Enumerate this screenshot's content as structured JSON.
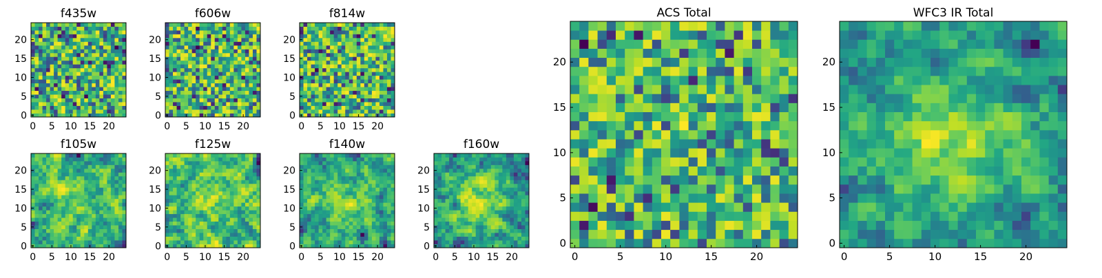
{
  "figure": {
    "colormap": "viridis",
    "colors": {
      "background": "#ffffff",
      "axis": "#000000"
    }
  },
  "chart_data": [
    {
      "type": "heatmap",
      "title": "f435w",
      "grid_size": 25,
      "seed": 11,
      "smoothness": 0,
      "center_boost": 0.0,
      "xticks": [
        0,
        5,
        10,
        15,
        20
      ],
      "yticks": [
        0,
        5,
        10,
        15,
        20
      ],
      "xlim": [
        0,
        24
      ],
      "ylim": [
        0,
        24
      ]
    },
    {
      "type": "heatmap",
      "title": "f606w",
      "grid_size": 25,
      "seed": 23,
      "smoothness": 0,
      "center_boost": 0.0,
      "xticks": [
        0,
        5,
        10,
        15,
        20
      ],
      "yticks": [
        0,
        5,
        10,
        15,
        20
      ],
      "xlim": [
        0,
        24
      ],
      "ylim": [
        0,
        24
      ]
    },
    {
      "type": "heatmap",
      "title": "f814w",
      "grid_size": 25,
      "seed": 37,
      "smoothness": 0,
      "center_boost": 0.0,
      "xticks": [
        0,
        5,
        10,
        15,
        20
      ],
      "yticks": [
        0,
        5,
        10,
        15,
        20
      ],
      "xlim": [
        0,
        24
      ],
      "ylim": [
        0,
        24
      ]
    },
    {
      "type": "heatmap",
      "title": "f105w",
      "grid_size": 25,
      "seed": 41,
      "smoothness": 1,
      "center_boost": 0.15,
      "xticks": [
        0,
        5,
        10,
        15,
        20
      ],
      "yticks": [
        0,
        5,
        10,
        15,
        20
      ],
      "xlim": [
        0,
        24
      ],
      "ylim": [
        0,
        24
      ]
    },
    {
      "type": "heatmap",
      "title": "f125w",
      "grid_size": 25,
      "seed": 53,
      "smoothness": 1,
      "center_boost": 0.1,
      "xticks": [
        0,
        5,
        10,
        15,
        20
      ],
      "yticks": [
        0,
        5,
        10,
        15,
        20
      ],
      "xlim": [
        0,
        24
      ],
      "ylim": [
        0,
        24
      ]
    },
    {
      "type": "heatmap",
      "title": "f140w",
      "grid_size": 25,
      "seed": 67,
      "smoothness": 1,
      "center_boost": 0.2,
      "xticks": [
        0,
        5,
        10,
        15,
        20
      ],
      "yticks": [
        0,
        5,
        10,
        15,
        20
      ],
      "xlim": [
        0,
        24
      ],
      "ylim": [
        0,
        24
      ]
    },
    {
      "type": "heatmap",
      "title": "f160w",
      "grid_size": 25,
      "seed": 71,
      "smoothness": 1,
      "center_boost": 0.3,
      "xticks": [
        0,
        5,
        10,
        15,
        20
      ],
      "yticks": [
        0,
        5,
        10,
        15,
        20
      ],
      "xlim": [
        0,
        24
      ],
      "ylim": [
        0,
        24
      ]
    },
    {
      "type": "heatmap",
      "title": "ACS Total",
      "grid_size": 25,
      "seed": 83,
      "smoothness": 0,
      "center_boost": 0.05,
      "xticks": [
        0,
        5,
        10,
        15,
        20
      ],
      "yticks": [
        0,
        5,
        10,
        15,
        20
      ],
      "xlim": [
        0,
        24
      ],
      "ylim": [
        0,
        24
      ]
    },
    {
      "type": "heatmap",
      "title": "WFC3 IR Total",
      "grid_size": 25,
      "seed": 97,
      "smoothness": 1,
      "center_boost": 0.45,
      "xticks": [
        0,
        5,
        10,
        15,
        20
      ],
      "yticks": [
        0,
        5,
        10,
        15,
        20
      ],
      "xlim": [
        0,
        24
      ],
      "ylim": [
        0,
        24
      ]
    }
  ]
}
